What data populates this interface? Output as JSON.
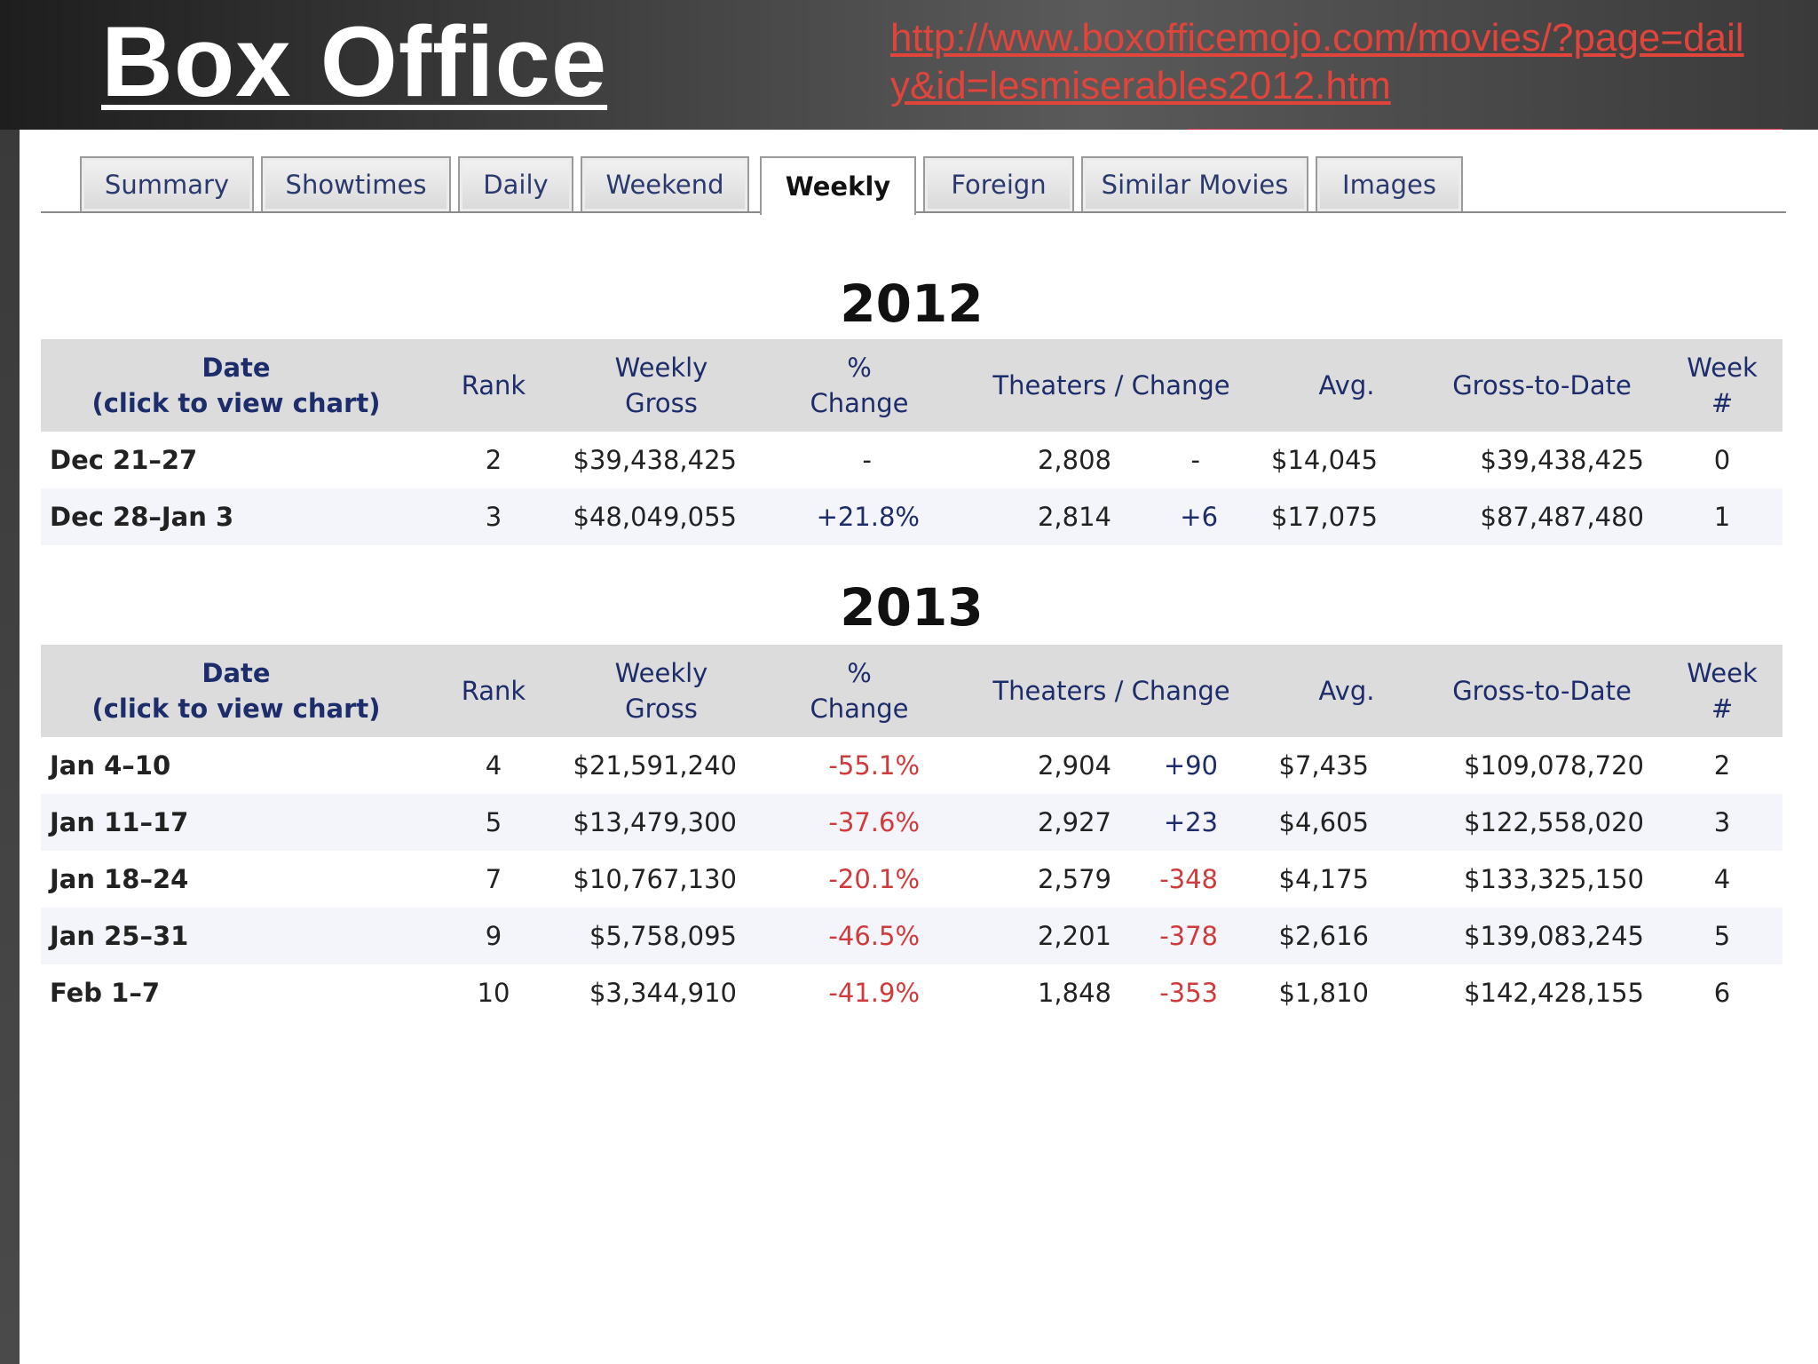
{
  "slide": {
    "title": "Box Office",
    "source_url": "http://www.boxofficemojo.com/movies/?page=daily&id=lesmiserables2012.htm"
  },
  "tabs": [
    {
      "label": "Summary"
    },
    {
      "label": "Showtimes"
    },
    {
      "label": "Daily"
    },
    {
      "label": "Weekend"
    },
    {
      "label": "Weekly",
      "active": true
    },
    {
      "label": "Foreign"
    },
    {
      "label": "Similar Movies"
    },
    {
      "label": "Images"
    }
  ],
  "columns": {
    "date_line1": "Date",
    "date_line2": "(click to view chart)",
    "rank": "Rank",
    "gross_line1": "Weekly",
    "gross_line2": "Gross",
    "pct_line1": "%",
    "pct_line2": "Change",
    "theaters": "Theaters / Change",
    "avg": "Avg.",
    "gtd": "Gross-to-Date",
    "week_line1": "Week",
    "week_line2": "#"
  },
  "years": [
    {
      "year": "2012",
      "rows": [
        {
          "date": "Dec 21–27",
          "rank": "2",
          "gross": "$39,438,425",
          "pct": "-",
          "theaters": "2,808",
          "tchange": "-",
          "avg": "$14,045",
          "gtd": "$39,438,425",
          "week": "0"
        },
        {
          "date": "Dec 28–Jan 3",
          "rank": "3",
          "gross": "$48,049,055",
          "pct": "+21.8%",
          "theaters": "2,814",
          "tchange": "+6",
          "avg": "$17,075",
          "gtd": "$87,487,480",
          "week": "1"
        }
      ]
    },
    {
      "year": "2013",
      "rows": [
        {
          "date": "Jan 4–10",
          "rank": "4",
          "gross": "$21,591,240",
          "pct": "-55.1%",
          "theaters": "2,904",
          "tchange": "+90",
          "avg": "$7,435",
          "gtd": "$109,078,720",
          "week": "2"
        },
        {
          "date": "Jan 11–17",
          "rank": "5",
          "gross": "$13,479,300",
          "pct": "-37.6%",
          "theaters": "2,927",
          "tchange": "+23",
          "avg": "$4,605",
          "gtd": "$122,558,020",
          "week": "3"
        },
        {
          "date": "Jan 18–24",
          "rank": "7",
          "gross": "$10,767,130",
          "pct": "-20.1%",
          "theaters": "2,579",
          "tchange": "-348",
          "avg": "$4,175",
          "gtd": "$133,325,150",
          "week": "4"
        },
        {
          "date": "Jan 25–31",
          "rank": "9",
          "gross": "$5,758,095",
          "pct": "-46.5%",
          "theaters": "2,201",
          "tchange": "-378",
          "avg": "$2,616",
          "gtd": "$139,083,245",
          "week": "5"
        },
        {
          "date": "Feb 1–7",
          "rank": "10",
          "gross": "$3,344,910",
          "pct": "-41.9%",
          "theaters": "1,848",
          "tchange": "-353",
          "avg": "$1,810",
          "gtd": "$142,428,155",
          "week": "6"
        }
      ]
    }
  ],
  "colors": {
    "link": "#e0443a",
    "header_text": "#1d2c6b",
    "negative": "#d03a3a",
    "header_row_bg": "#dcdcdc"
  }
}
